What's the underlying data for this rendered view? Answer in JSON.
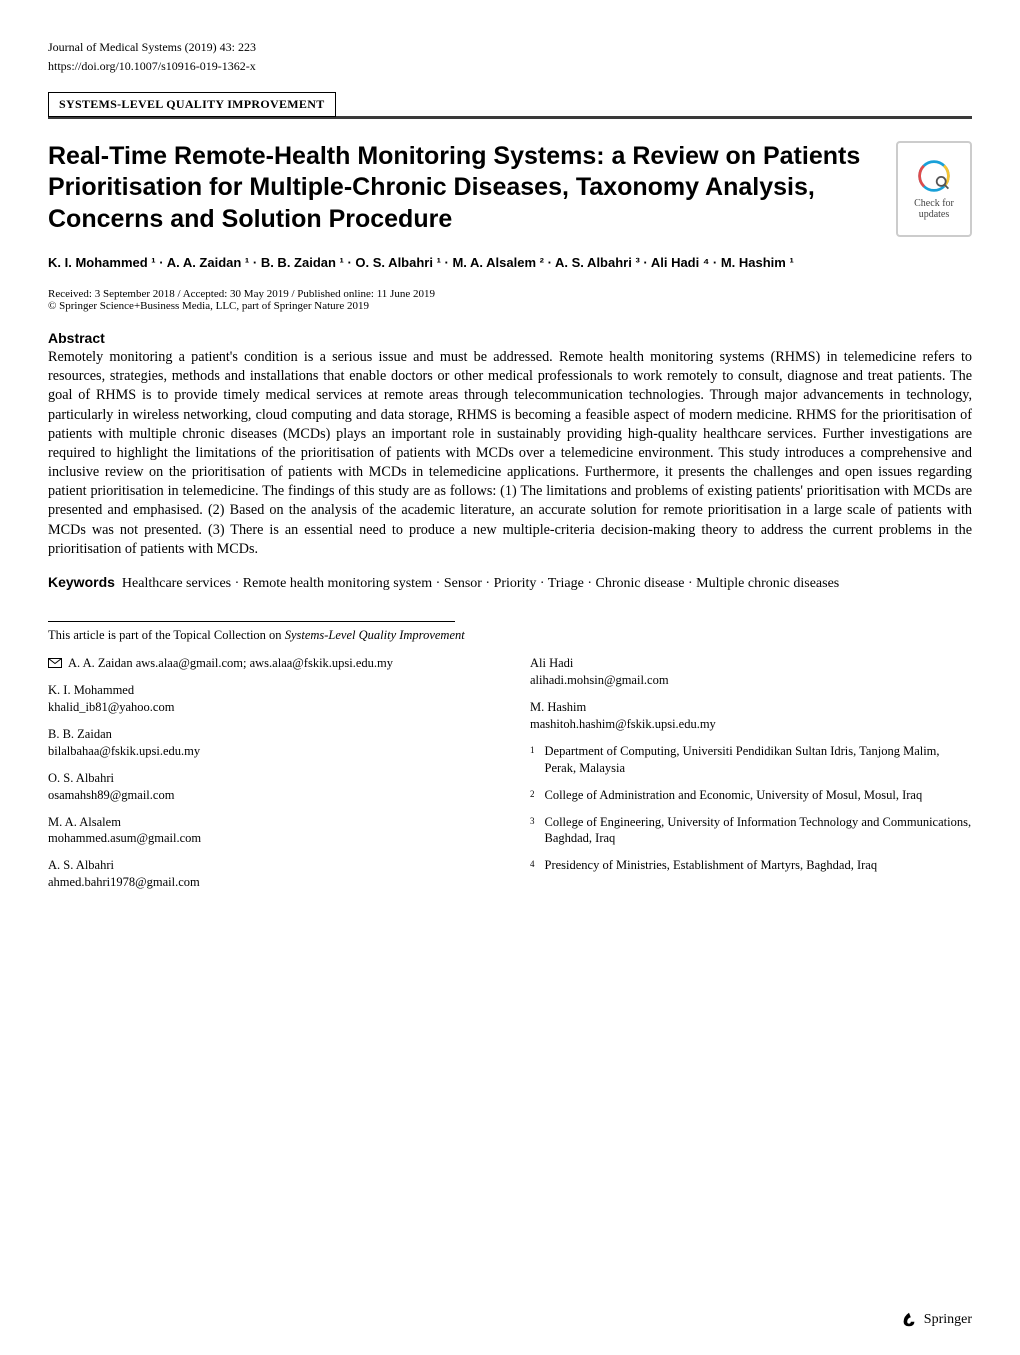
{
  "header": {
    "journal": "Journal of Medical Systems (2019) 43: 223",
    "doi": "https://doi.org/10.1007/s10916-019-1362-x"
  },
  "category": "SYSTEMS-LEVEL QUALITY IMPROVEMENT",
  "badge": {
    "line1": "Check for",
    "line2": "updates"
  },
  "title": "Real-Time Remote-Health Monitoring Systems: a Review on Patients Prioritisation for Multiple-Chronic Diseases, Taxonomy Analysis, Concerns and Solution Procedure",
  "authors_html": "K. I. Mohammed ¹ · A. A. Zaidan ¹ · B. B. Zaidan ¹ · O. S. Albahri ¹ · M. A. Alsalem ² · A. S. Albahri ³ · Ali Hadi ⁴ · M. Hashim ¹",
  "dates": "Received: 3 September 2018 / Accepted: 30 May 2019 / Published online: 11 June 2019",
  "copyright": "© Springer Science+Business Media, LLC, part of Springer Nature 2019",
  "abstract_h": "Abstract",
  "abstract": "Remotely monitoring a patient's condition is a serious issue and must be addressed. Remote health monitoring systems (RHMS) in telemedicine refers to resources, strategies, methods and installations that enable doctors or other medical professionals to work remotely to consult, diagnose and treat patients. The goal of RHMS is to provide timely medical services at remote areas through telecommunication technologies. Through major advancements in technology, particularly in wireless networking, cloud computing and data storage, RHMS is becoming a feasible aspect of modern medicine. RHMS for the prioritisation of patients with multiple chronic diseases (MCDs) plays an important role in sustainably providing high-quality healthcare services. Further investigations are required to highlight the limitations of the prioritisation of patients with MCDs over a telemedicine environment. This study introduces a comprehensive and inclusive review on the prioritisation of patients with MCDs in telemedicine applications. Furthermore, it presents the challenges and open issues regarding patient prioritisation in telemedicine. The findings of this study are as follows: (1) The limitations and problems of existing patients' prioritisation with MCDs are presented and emphasised. (2) Based on the analysis of the academic literature, an accurate solution for remote prioritisation in a large scale of patients with MCDs was not presented. (3) There is an essential need to produce a new multiple-criteria decision-making theory to address the current problems in the prioritisation of patients with MCDs.",
  "keywords_label": "Keywords",
  "keywords": "Healthcare services · Remote health monitoring system · Sensor · Priority · Triage · Chronic disease · Multiple chronic diseases",
  "topical": {
    "pre": "This article is part of the Topical Collection on ",
    "it": "Systems-Level Quality Improvement"
  },
  "corr": {
    "name": "A. A. Zaidan",
    "email": "aws.alaa@gmail.com; aws.alaa@fskik.upsi.edu.my"
  },
  "left_authors": [
    {
      "n": "K. I. Mohammed",
      "e": "khalid_ib81@yahoo.com"
    },
    {
      "n": "B. B. Zaidan",
      "e": "bilalbahaa@fskik.upsi.edu.my"
    },
    {
      "n": "O. S. Albahri",
      "e": "osamahsh89@gmail.com"
    },
    {
      "n": "M. A. Alsalem",
      "e": "mohammed.asum@gmail.com"
    },
    {
      "n": "A. S. Albahri",
      "e": "ahmed.bahri1978@gmail.com"
    }
  ],
  "right_authors": [
    {
      "n": "Ali Hadi",
      "e": "alihadi.mohsin@gmail.com"
    },
    {
      "n": "M. Hashim",
      "e": "mashitoh.hashim@fskik.upsi.edu.my"
    }
  ],
  "affiliations": [
    {
      "num": "1",
      "t": "Department of Computing, Universiti Pendidikan Sultan Idris, Tanjong Malim, Perak, Malaysia"
    },
    {
      "num": "2",
      "t": "College of Administration and Economic, University of Mosul, Mosul, Iraq"
    },
    {
      "num": "3",
      "t": "College of Engineering, University of Information Technology and Communications, Baghdad, Iraq"
    },
    {
      "num": "4",
      "t": "Presidency of Ministries, Establishment of Martyrs, Baghdad, Iraq"
    }
  ],
  "publisher": "Springer"
}
